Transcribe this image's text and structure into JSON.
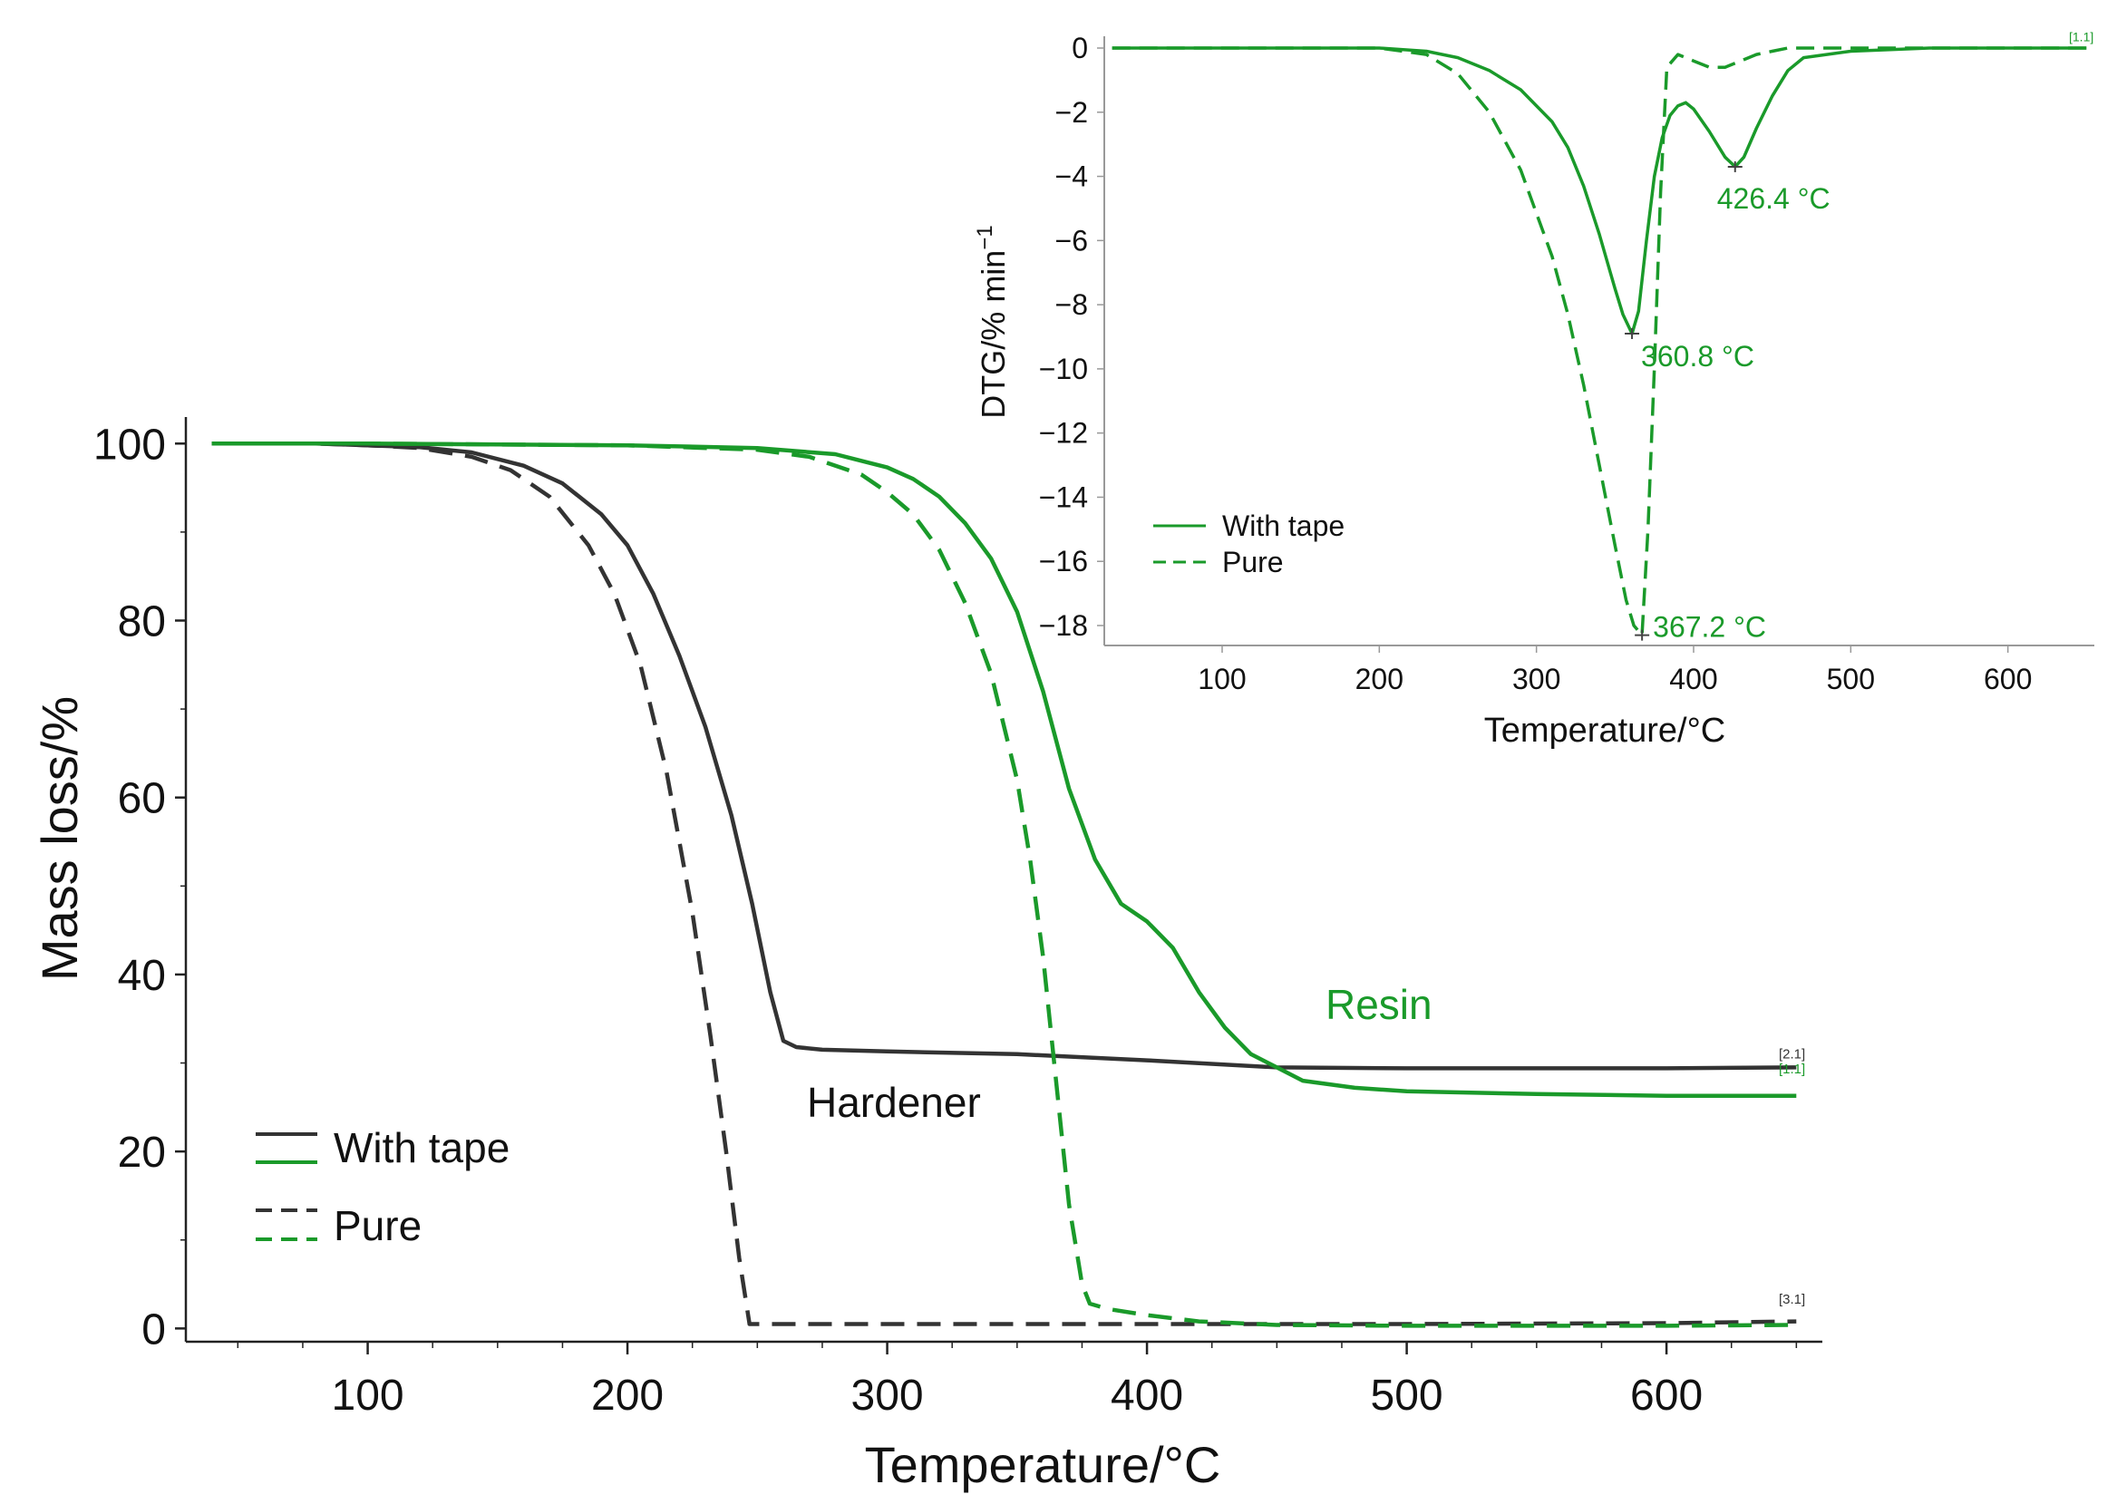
{
  "chart_data": [
    {
      "type": "line",
      "id": "main",
      "xlabel": "Temperature/°C",
      "ylabel": "Mass loss/%",
      "xlim": [
        30,
        660
      ],
      "ylim": [
        -1.5,
        103
      ],
      "xticks": [
        100,
        200,
        300,
        400,
        500,
        600
      ],
      "yticks": [
        0,
        20,
        40,
        60,
        80,
        100
      ],
      "colors": {
        "black": "#333333",
        "green": "#1a9a2a"
      },
      "series": [
        {
          "name": "Hardener - With tape",
          "color": "black",
          "dash": false,
          "x": [
            40,
            80,
            100,
            120,
            140,
            160,
            175,
            190,
            200,
            210,
            220,
            230,
            240,
            248,
            255,
            260,
            265,
            275,
            300,
            350,
            400,
            450,
            500,
            550,
            600,
            650
          ],
          "y": [
            100,
            100,
            99.8,
            99.6,
            99,
            97.5,
            95.5,
            92,
            88.5,
            83,
            76,
            68,
            58,
            48,
            38,
            32.5,
            31.8,
            31.5,
            31.3,
            31,
            30.3,
            29.5,
            29.4,
            29.4,
            29.4,
            29.5
          ]
        },
        {
          "name": "Hardener - Pure",
          "color": "black",
          "dash": true,
          "x": [
            40,
            80,
            100,
            120,
            140,
            155,
            170,
            185,
            195,
            205,
            215,
            225,
            232,
            238,
            243,
            247,
            250,
            270,
            300,
            400,
            500,
            600,
            650
          ],
          "y": [
            100,
            100,
            99.8,
            99.5,
            98.5,
            97,
            94,
            88.5,
            83,
            75,
            63,
            47,
            33,
            20,
            8,
            0.5,
            0.5,
            0.5,
            0.5,
            0.5,
            0.5,
            0.6,
            0.8
          ]
        },
        {
          "name": "Resin - With tape",
          "color": "green",
          "dash": false,
          "x": [
            40,
            100,
            150,
            200,
            250,
            280,
            300,
            310,
            320,
            330,
            340,
            350,
            360,
            370,
            380,
            390,
            400,
            410,
            420,
            430,
            440,
            450,
            460,
            480,
            500,
            550,
            600,
            650
          ],
          "y": [
            100,
            100,
            99.9,
            99.8,
            99.5,
            98.8,
            97.3,
            96,
            94,
            91,
            87,
            81,
            72,
            61,
            53,
            48,
            46,
            43,
            38,
            34,
            31,
            29.5,
            28,
            27.2,
            26.8,
            26.5,
            26.3,
            26.3
          ]
        },
        {
          "name": "Resin - Pure",
          "color": "green",
          "dash": true,
          "x": [
            40,
            100,
            150,
            200,
            250,
            270,
            290,
            300,
            310,
            320,
            330,
            340,
            350,
            355,
            360,
            365,
            370,
            375,
            378,
            385,
            400,
            420,
            450,
            500,
            550,
            600,
            650
          ],
          "y": [
            100,
            100,
            99.9,
            99.8,
            99.3,
            98.5,
            96.5,
            94.5,
            92,
            88,
            82,
            74,
            62,
            53,
            42,
            28,
            14,
            5,
            2.8,
            2.2,
            1.5,
            0.8,
            0.4,
            0.3,
            0.3,
            0.3,
            0.4
          ]
        }
      ],
      "annotations": [
        {
          "text": "Hardener",
          "color": "black",
          "x": 300,
          "y": 24
        },
        {
          "text": "Resin",
          "color": "green",
          "x": 460,
          "y": 35.5
        }
      ],
      "end_markers": [
        {
          "text": "[2.1]",
          "color": "black",
          "y": 30.5
        },
        {
          "text": "[1.1]",
          "color": "green",
          "y": 28.8
        },
        {
          "text": "[3.1]",
          "color": "black",
          "y": 2.8
        }
      ],
      "legend": {
        "position": "bottom-left",
        "entries": [
          {
            "label": "With tape",
            "dash": false
          },
          {
            "label": "Pure",
            "dash": true
          }
        ]
      }
    },
    {
      "type": "line",
      "id": "inset",
      "xlabel": "Temperature/°C",
      "ylabel": "DTG/% min",
      "ylabel_sup": "−1",
      "xlim": [
        25,
        655
      ],
      "ylim": [
        -18.5,
        0.4
      ],
      "xticks": [
        100,
        200,
        300,
        400,
        500,
        600
      ],
      "yticks": [
        0,
        -2,
        -4,
        -6,
        -8,
        -10,
        -12,
        -14,
        -16,
        -18
      ],
      "ytick_labels": [
        "0",
        "−2",
        "−4",
        "−6",
        "−8",
        "−10",
        "−12",
        "−14",
        "−16",
        "−18"
      ],
      "series": [
        {
          "name": "With tape",
          "color": "green",
          "dash": false,
          "x": [
            30,
            100,
            150,
            200,
            230,
            250,
            270,
            290,
            310,
            320,
            330,
            340,
            350,
            355,
            360.8,
            365,
            370,
            375,
            380,
            385,
            390,
            395,
            400,
            410,
            420,
            426.4,
            432,
            440,
            450,
            460,
            470,
            500,
            550,
            600,
            650
          ],
          "y": [
            0,
            0,
            0,
            0,
            -0.1,
            -0.3,
            -0.7,
            -1.3,
            -2.3,
            -3.1,
            -4.3,
            -5.8,
            -7.5,
            -8.3,
            -8.9,
            -8.2,
            -6,
            -4,
            -2.8,
            -2.1,
            -1.8,
            -1.7,
            -1.9,
            -2.6,
            -3.4,
            -3.7,
            -3.4,
            -2.5,
            -1.5,
            -0.7,
            -0.3,
            -0.1,
            0,
            0,
            0
          ]
        },
        {
          "name": "Pure",
          "color": "green",
          "dash": true,
          "x": [
            30,
            100,
            150,
            200,
            230,
            250,
            270,
            290,
            310,
            320,
            330,
            340,
            350,
            357,
            362,
            367.2,
            371,
            375,
            379,
            383,
            390,
            400,
            410,
            420,
            430,
            440,
            450,
            460,
            480,
            500,
            600,
            650
          ],
          "y": [
            0,
            0,
            0,
            0,
            -0.2,
            -0.8,
            -2,
            -3.8,
            -6.5,
            -8.3,
            -10.5,
            -13,
            -15.5,
            -17.2,
            -18,
            -18.3,
            -15,
            -10,
            -4.5,
            -0.6,
            -0.2,
            -0.4,
            -0.6,
            -0.6,
            -0.4,
            -0.2,
            -0.1,
            0,
            0,
            0,
            0,
            0
          ]
        }
      ],
      "peaks": [
        {
          "label": "426.4 °C",
          "x": 426.4,
          "y": -3.7
        },
        {
          "label": "360.8 °C",
          "x": 360.8,
          "y": -8.9
        },
        {
          "label": "367.2 °C",
          "x": 367.2,
          "y": -18.3
        }
      ],
      "end_marker": {
        "text": "[1.1]",
        "y": 0.1
      },
      "legend": {
        "position": "bottom-left",
        "entries": [
          {
            "label": "With tape",
            "dash": false
          },
          {
            "label": "Pure",
            "dash": true
          }
        ]
      }
    }
  ]
}
